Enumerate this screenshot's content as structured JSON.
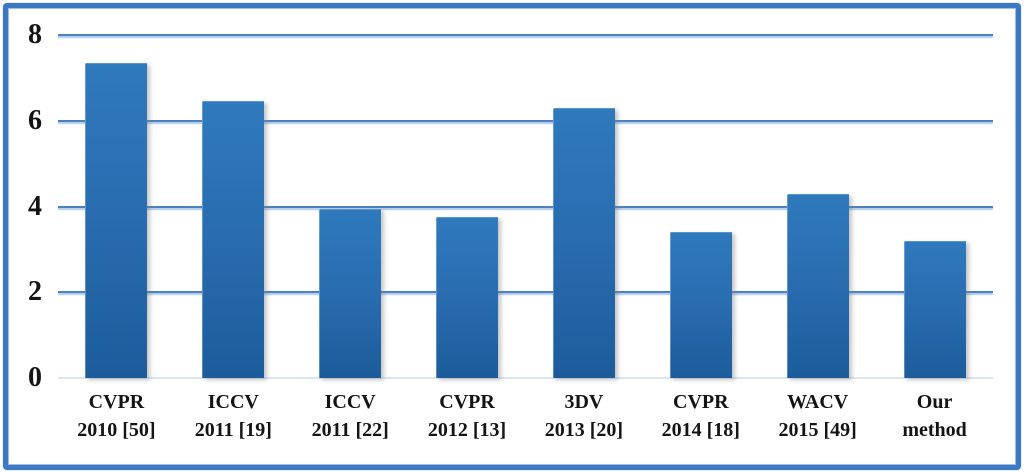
{
  "chart_data": {
    "type": "bar",
    "title": "",
    "xlabel": "",
    "ylabel": "",
    "ylim": [
      0,
      8
    ],
    "yticks": [
      0,
      2,
      4,
      6,
      8
    ],
    "grid": true,
    "legend": false,
    "categories": [
      {
        "line1": "CVPR",
        "line2": "2010 [50]"
      },
      {
        "line1": "ICCV",
        "line2": "2011 [19]"
      },
      {
        "line1": "ICCV",
        "line2": "2011 [22]"
      },
      {
        "line1": "CVPR",
        "line2": "2012 [13]"
      },
      {
        "line1": "3DV",
        "line2": "2013 [20]"
      },
      {
        "line1": "CVPR",
        "line2": "2014 [18]"
      },
      {
        "line1": "WACV",
        "line2": "2015 [49]"
      },
      {
        "line1": "Our",
        "line2": "method"
      }
    ],
    "values": [
      7.35,
      6.45,
      3.95,
      3.75,
      6.3,
      3.4,
      4.3,
      3.2
    ]
  },
  "colors": {
    "frame_border": "#3d79c3",
    "gridline": "#4c80c0",
    "gridline_shadow": "#aac8e9",
    "zero_line": "#d9e5f3",
    "bar_gradient_top": "#2f79bd",
    "bar_gradient_mid": "#2a6db1",
    "bar_gradient_bottom": "#1c5c9b",
    "label_color": "#141414"
  }
}
